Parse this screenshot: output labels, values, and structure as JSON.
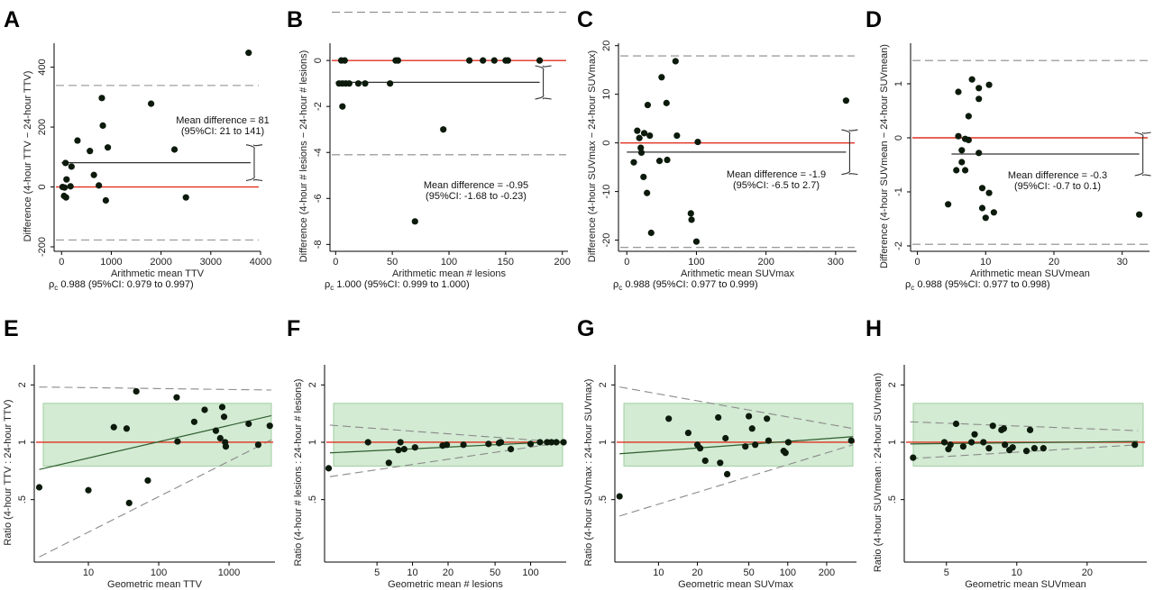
{
  "colors": {
    "point": "#0c1a0c",
    "zero_line": "#e03020",
    "mean_line": "#333333",
    "mean_line_ratio": "#2e5e2e",
    "limits": "#8a8a8a",
    "band_fill": "#d3ead3",
    "band_stroke": "#9fcf9f"
  },
  "chart_data": [
    {
      "panel": "A",
      "type": "scatter",
      "xlabel": "Arithmetic mean TTV",
      "ylabel": "Difference (4-hour TTV − 24-hour TTV)",
      "xlim": [
        -150,
        4000
      ],
      "ylim": [
        -215,
        480
      ],
      "xticks": [
        0,
        1000,
        2000,
        3000,
        4000
      ],
      "yticks": [
        -200,
        0,
        200,
        400
      ],
      "zero_line": 0,
      "mean_line": {
        "x0": 0,
        "x1": 3800,
        "y": 81
      },
      "limits": [
        339,
        -177
      ],
      "ci": {
        "low": 21,
        "high": 141
      },
      "annotation_lines": [
        "Mean difference = 81",
        "(95%CI: 21 to 141)"
      ],
      "rho_text": "0.988 (95%CI: 0.979 to 0.997)",
      "points": [
        [
          3760,
          448
        ],
        [
          810,
          297
        ],
        [
          1800,
          278
        ],
        [
          830,
          205
        ],
        [
          320,
          155
        ],
        [
          930,
          132
        ],
        [
          2270,
          125
        ],
        [
          570,
          120
        ],
        [
          650,
          40
        ],
        [
          80,
          80
        ],
        [
          200,
          68
        ],
        [
          100,
          25
        ],
        [
          750,
          5
        ],
        [
          180,
          2
        ],
        [
          20,
          0
        ],
        [
          60,
          -2
        ],
        [
          50,
          -30
        ],
        [
          90,
          -35
        ],
        [
          890,
          -45
        ],
        [
          2500,
          -35
        ]
      ]
    },
    {
      "panel": "B",
      "type": "scatter",
      "xlabel": "Arithmetic mean # lesions",
      "ylabel": "Difference (4-hour # lesions − 24-hour # lesions)",
      "xlim": [
        -5,
        205
      ],
      "ylim": [
        -8.3,
        0.75
      ],
      "xticks": [
        0,
        50,
        100,
        150,
        200
      ],
      "yticks": [
        -8,
        -6,
        -4,
        -2,
        0
      ],
      "zero_line": 0,
      "mean_line": {
        "x0": 0,
        "x1": 180,
        "y": -0.95
      },
      "limits": [
        2.1,
        -4.1
      ],
      "ci": {
        "low": -1.68,
        "high": -0.23
      },
      "annotation_lines": [
        "Mean difference = -0.95",
        "(95%CI: -1.68 to -0.23)"
      ],
      "rho_text": "1.000 (95%CI: 0.999 to 1.000)",
      "points": [
        [
          5,
          0
        ],
        [
          8,
          0
        ],
        [
          53,
          0
        ],
        [
          55,
          0
        ],
        [
          118,
          0
        ],
        [
          130,
          0
        ],
        [
          140,
          0
        ],
        [
          150,
          0
        ],
        [
          152,
          0
        ],
        [
          180,
          0
        ],
        [
          3,
          -1
        ],
        [
          6,
          -1
        ],
        [
          9,
          -1
        ],
        [
          12,
          -1
        ],
        [
          20,
          -1
        ],
        [
          26,
          -1
        ],
        [
          48,
          -1
        ],
        [
          6,
          -2
        ],
        [
          95,
          -3
        ],
        [
          70,
          -7
        ]
      ]
    },
    {
      "panel": "C",
      "type": "scatter",
      "xlabel": "Arithmetic mean SUVmax",
      "ylabel": "Difference (4-hour SUVmax − 24-hour SUVmax)",
      "xlim": [
        -12,
        330
      ],
      "ylim": [
        -22.3,
        20.5
      ],
      "xticks": [
        0,
        100,
        200,
        300
      ],
      "yticks": [
        -20,
        -10,
        0,
        10,
        20
      ],
      "zero_line": 0,
      "mean_line": {
        "x0": 0,
        "x1": 315,
        "y": -1.9
      },
      "limits": [
        17.9,
        -21.5
      ],
      "ci": {
        "low": -6.5,
        "high": 2.7
      },
      "annotation_lines": [
        "Mean difference = -1.9",
        "(95%CI: -6.5 to 2.7)"
      ],
      "rho_text": "0.988 (95%CI: 0.977 to 0.999)",
      "points": [
        [
          70,
          16.8
        ],
        [
          50,
          13.5
        ],
        [
          315,
          8.7
        ],
        [
          57,
          8.2
        ],
        [
          30,
          7.8
        ],
        [
          15,
          2.5
        ],
        [
          25,
          2
        ],
        [
          33,
          1.5
        ],
        [
          72,
          1.5
        ],
        [
          18,
          1
        ],
        [
          102,
          0.2
        ],
        [
          20,
          -1
        ],
        [
          10,
          -4
        ],
        [
          21,
          -2
        ],
        [
          47,
          -3.7
        ],
        [
          58,
          -3.5
        ],
        [
          24,
          -7
        ],
        [
          29,
          -10.3
        ],
        [
          92,
          -14.5
        ],
        [
          93,
          -15.8
        ],
        [
          35,
          -18.5
        ],
        [
          100,
          -20.3
        ]
      ]
    },
    {
      "panel": "D",
      "type": "scatter",
      "xlabel": "Arithmetic mean SUVmean",
      "ylabel": "Difference (4-hour SUVmean − 24-hour SUVmean)",
      "xlim": [
        -1,
        34
      ],
      "ylim": [
        -2.1,
        1.75
      ],
      "xticks": [
        0,
        10,
        20,
        30
      ],
      "yticks": [
        -2,
        -1,
        0,
        1
      ],
      "zero_line": 0,
      "mean_line": {
        "x0": 5,
        "x1": 32.5,
        "y": -0.3
      },
      "limits": [
        1.43,
        -1.97
      ],
      "ci": {
        "low": -0.7,
        "high": 0.1
      },
      "annotation_lines": [
        "Mean difference = -0.3",
        "(95%CI: -0.7 to 0.1)"
      ],
      "rho_text": "0.988 (95%CI: 0.977 to 0.998)",
      "points": [
        [
          8,
          1.08
        ],
        [
          10.5,
          0.98
        ],
        [
          9,
          0.92
        ],
        [
          6,
          0.85
        ],
        [
          9,
          0.72
        ],
        [
          7.5,
          0.4
        ],
        [
          6,
          0.03
        ],
        [
          7,
          -0.02
        ],
        [
          7.5,
          -0.04
        ],
        [
          6.5,
          -0.23
        ],
        [
          9,
          -0.28
        ],
        [
          6.5,
          -0.45
        ],
        [
          5.7,
          -0.6
        ],
        [
          7,
          -0.6
        ],
        [
          9.5,
          -0.93
        ],
        [
          10.5,
          -1.02
        ],
        [
          4.5,
          -1.23
        ],
        [
          9.5,
          -1.3
        ],
        [
          11.2,
          -1.38
        ],
        [
          10,
          -1.48
        ],
        [
          32.5,
          -1.42
        ]
      ]
    },
    {
      "panel": "E",
      "type": "scatter",
      "xscale": "log",
      "yscale": "log",
      "xlabel": "Geometric mean TTV",
      "ylabel": "Ratio (4-hour TTV : 24-hour TTV)",
      "xlim": [
        1.7,
        4500
      ],
      "ylim": [
        0.235,
        2.55
      ],
      "xticks": [
        10,
        100,
        1000
      ],
      "xtick_labels": [
        "10",
        "100",
        "1000"
      ],
      "yticks": [
        0.5,
        1,
        2
      ],
      "ytick_labels": [
        ".5",
        "1",
        "2"
      ],
      "zero_line": 1,
      "band": [
        0.75,
        1.6
      ],
      "fit_line": {
        "x0": 2,
        "y0": 0.72,
        "x1": 4000,
        "y1": 1.38
      },
      "limit_upper": {
        "x0": 2,
        "y0": 1.95,
        "x1": 4000,
        "y1": 1.88
      },
      "limit_lower": {
        "x0": 2,
        "y0": 0.25,
        "x1": 4000,
        "y1": 1.03
      },
      "points": [
        [
          2,
          0.58
        ],
        [
          10,
          0.56
        ],
        [
          23,
          1.2
        ],
        [
          35,
          1.18
        ],
        [
          38,
          0.48
        ],
        [
          48,
          1.85
        ],
        [
          70,
          0.63
        ],
        [
          180,
          1.72
        ],
        [
          185,
          1.01
        ],
        [
          320,
          1.28
        ],
        [
          450,
          1.48
        ],
        [
          650,
          1.15
        ],
        [
          750,
          1.05
        ],
        [
          800,
          1.53
        ],
        [
          850,
          1.36
        ],
        [
          880,
          1.0
        ],
        [
          900,
          0.95
        ],
        [
          1900,
          1.25
        ],
        [
          2600,
          0.97
        ],
        [
          3800,
          1.22
        ]
      ]
    },
    {
      "panel": "F",
      "type": "scatter",
      "xscale": "log",
      "yscale": "log",
      "xlabel": "Geometric mean # lesions",
      "ylabel": "Ratio (4-hour # lesions : 24-hour # lesions)",
      "xlim": [
        1.8,
        200
      ],
      "ylim": [
        0.235,
        2.55
      ],
      "xticks": [
        5,
        10,
        20,
        50,
        100
      ],
      "xtick_labels": [
        "5",
        "10",
        "20",
        "50",
        "100"
      ],
      "yticks": [
        0.5,
        1,
        2
      ],
      "ytick_labels": [
        ".5",
        "1",
        "2"
      ],
      "zero_line": 1,
      "band": [
        0.75,
        1.6
      ],
      "fit_line": {
        "x0": 2,
        "y0": 0.88,
        "x1": 190,
        "y1": 1.01
      },
      "limit_upper": {
        "x0": 2,
        "y0": 1.23,
        "x1": 190,
        "y1": 1.0
      },
      "limit_lower": {
        "x0": 2,
        "y0": 0.66,
        "x1": 190,
        "y1": 1.0
      },
      "points": [
        [
          1.95,
          0.73
        ],
        [
          4.2,
          1.0
        ],
        [
          6.3,
          0.78
        ],
        [
          7.6,
          0.91
        ],
        [
          7.9,
          1.0
        ],
        [
          8.5,
          0.92
        ],
        [
          10.5,
          0.94
        ],
        [
          18,
          0.96
        ],
        [
          19.5,
          0.97
        ],
        [
          27,
          0.97
        ],
        [
          44,
          0.98
        ],
        [
          54,
          0.99
        ],
        [
          56,
          1.0
        ],
        [
          68,
          0.92
        ],
        [
          100,
          0.98
        ],
        [
          120,
          1.0
        ],
        [
          138,
          1.0
        ],
        [
          150,
          1.0
        ],
        [
          165,
          1.0
        ],
        [
          190,
          1.0
        ]
      ]
    },
    {
      "panel": "G",
      "type": "scatter",
      "xscale": "log",
      "yscale": "log",
      "xlabel": "Geometric mean SUVmax",
      "ylabel": "Ratio (4-hour SUVmax : 24-hour SUVmax)",
      "xlim": [
        4.6,
        340
      ],
      "ylim": [
        0.235,
        2.55
      ],
      "xticks": [
        10,
        20,
        50,
        100,
        200
      ],
      "xtick_labels": [
        "10",
        "20",
        "50",
        "100",
        "200"
      ],
      "yticks": [
        0.5,
        1,
        2
      ],
      "ytick_labels": [
        ".5",
        "1",
        "2"
      ],
      "zero_line": 1,
      "band": [
        0.75,
        1.6
      ],
      "fit_line": {
        "x0": 5,
        "y0": 0.87,
        "x1": 320,
        "y1": 1.07
      },
      "limit_upper": {
        "x0": 5,
        "y0": 1.95,
        "x1": 320,
        "y1": 1.18
      },
      "limit_lower": {
        "x0": 5,
        "y0": 0.41,
        "x1": 320,
        "y1": 0.97
      },
      "points": [
        [
          5,
          0.52
        ],
        [
          12,
          1.33
        ],
        [
          17,
          1.12
        ],
        [
          20,
          0.97
        ],
        [
          21,
          0.93
        ],
        [
          23,
          0.8
        ],
        [
          29,
          1.35
        ],
        [
          30,
          0.78
        ],
        [
          33,
          1.05
        ],
        [
          34,
          0.68
        ],
        [
          47,
          0.95
        ],
        [
          50,
          1.37
        ],
        [
          53,
          1.18
        ],
        [
          56,
          0.97
        ],
        [
          69,
          1.33
        ],
        [
          71,
          1.02
        ],
        [
          93,
          0.9
        ],
        [
          96,
          0.88
        ],
        [
          101,
          1.0
        ],
        [
          310,
          1.02
        ]
      ]
    },
    {
      "panel": "H",
      "type": "scatter",
      "xscale": "log",
      "yscale": "log",
      "xlabel": "Geometric mean SUVmean",
      "ylabel": "Ratio (4-hour SUVmean : 24-hour SUVmean)",
      "xlim": [
        3.3,
        36
      ],
      "ylim": [
        0.235,
        2.55
      ],
      "xticks": [
        5,
        10,
        20
      ],
      "xtick_labels": [
        "5",
        "10",
        "20"
      ],
      "yticks": [
        0.5,
        1,
        2
      ],
      "ytick_labels": [
        ".5",
        "1",
        "2"
      ],
      "zero_line": 1,
      "band": [
        0.75,
        1.6
      ],
      "fit_line": {
        "x0": 3.5,
        "y0": 0.98,
        "x1": 33,
        "y1": 1.01
      },
      "limit_upper": {
        "x0": 3.5,
        "y0": 1.28,
        "x1": 33,
        "y1": 1.15
      },
      "limit_lower": {
        "x0": 3.5,
        "y0": 0.82,
        "x1": 33,
        "y1": 0.97
      },
      "points": [
        [
          3.6,
          0.83
        ],
        [
          4.9,
          1.0
        ],
        [
          5.1,
          0.92
        ],
        [
          5.2,
          0.97
        ],
        [
          5.5,
          1.25
        ],
        [
          5.9,
          0.95
        ],
        [
          6.4,
          1.0
        ],
        [
          6.6,
          1.1
        ],
        [
          7.2,
          1.0
        ],
        [
          7.6,
          0.93
        ],
        [
          7.9,
          1.22
        ],
        [
          8.6,
          1.16
        ],
        [
          8.8,
          1.18
        ],
        [
          8.9,
          0.97
        ],
        [
          9.3,
          0.91
        ],
        [
          9.6,
          0.94
        ],
        [
          11,
          0.9
        ],
        [
          11.4,
          1.16
        ],
        [
          11.9,
          0.93
        ],
        [
          13,
          0.93
        ],
        [
          32,
          0.97
        ]
      ]
    }
  ]
}
